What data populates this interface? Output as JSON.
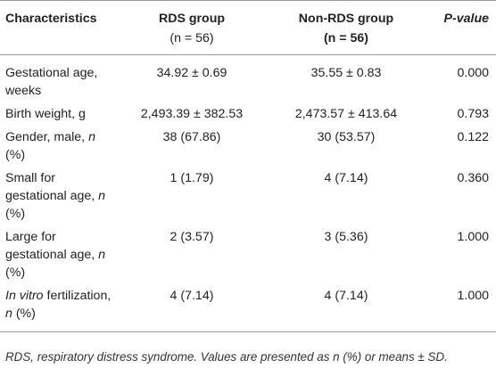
{
  "table": {
    "header": {
      "characteristics": "Characteristics",
      "rds_group": "RDS group",
      "rds_n": "(n = 56)",
      "non_rds_group": "Non-RDS group",
      "non_rds_n": "(n = 56)",
      "p_value": "P-value"
    },
    "rows": [
      {
        "label": "Gestational age, weeks",
        "rds": "34.92 ± 0.69",
        "non_rds": "35.55 ± 0.83",
        "p": "0.000"
      },
      {
        "label": "Birth weight, g",
        "rds": "2,493.39 ± 382.53",
        "non_rds": "2,473.57 ± 413.64",
        "p": "0.793"
      },
      {
        "label_pre": "Gender, male, ",
        "label_ital": "n",
        "label_post": " (%)",
        "rds": "38 (67.86)",
        "non_rds": "30 (53.57)",
        "p": "0.122"
      },
      {
        "label_pre": "Small for gestational age, ",
        "label_ital": "n",
        "label_post": " (%)",
        "rds": "1 (1.79)",
        "non_rds": "4 (7.14)",
        "p": "0.360"
      },
      {
        "label_pre": "Large for gestational age, ",
        "label_ital": "n",
        "label_post": " (%)",
        "rds": "2 (3.57)",
        "non_rds": "3 (5.36)",
        "p": "1.000"
      },
      {
        "label_ital_pre": "In vitro",
        "label_mid": " fertilization, ",
        "label_ital": "n",
        "label_post": " (%)",
        "rds": "4 (7.14)",
        "non_rds": "4 (7.14)",
        "p": "1.000"
      }
    ]
  },
  "footnote": "RDS, respiratory distress syndrome. Values are presented as n (%) or means ± SD."
}
